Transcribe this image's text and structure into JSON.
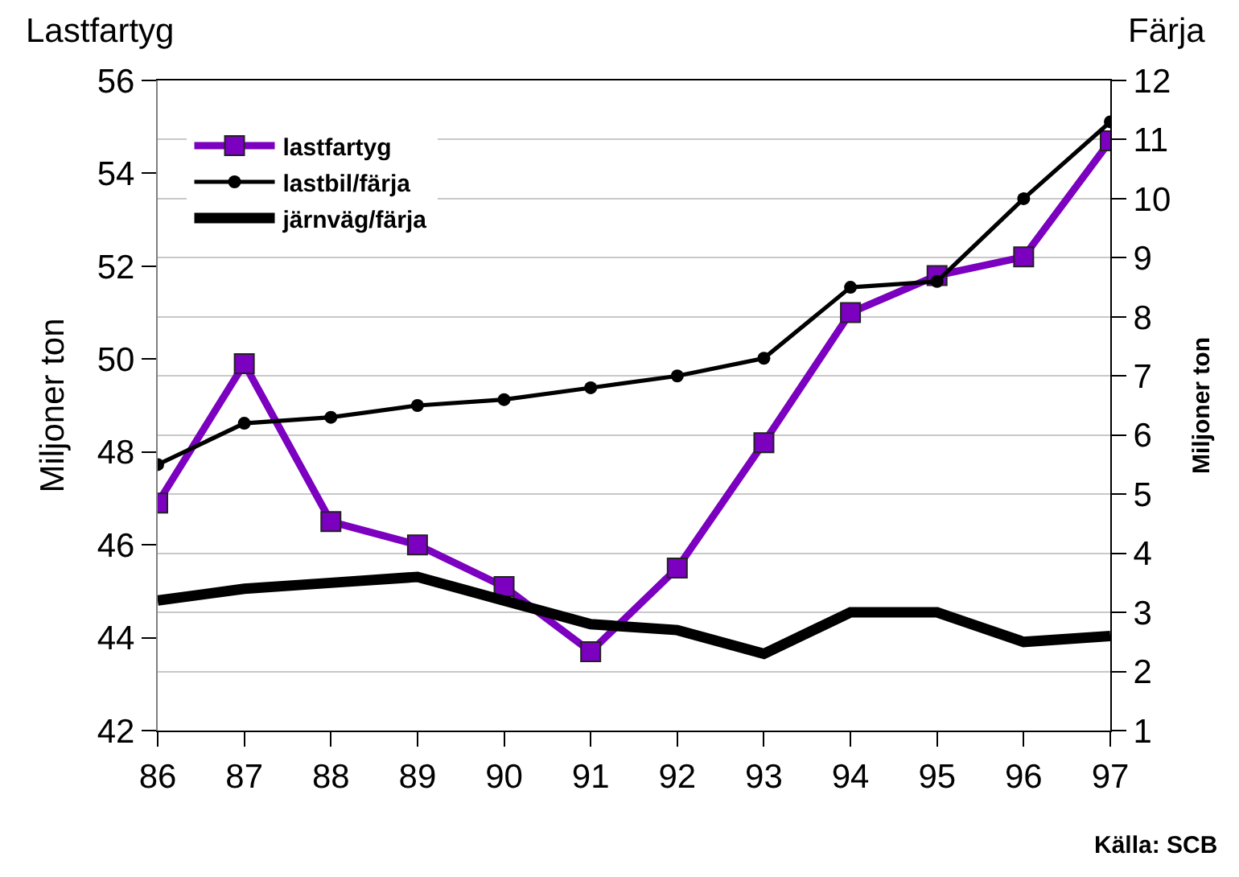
{
  "chart_data": {
    "type": "line",
    "x": [
      86,
      87,
      88,
      89,
      90,
      91,
      92,
      93,
      94,
      95,
      96,
      97
    ],
    "xlim": [
      86,
      97
    ],
    "xticks": [
      86,
      87,
      88,
      89,
      90,
      91,
      92,
      93,
      94,
      95,
      96,
      97
    ],
    "ylim": [
      42,
      56
    ],
    "yticks": [
      42,
      44,
      46,
      48,
      50,
      52,
      54,
      56
    ],
    "y2lim": [
      1,
      12
    ],
    "y2ticks": [
      1,
      2,
      3,
      4,
      5,
      6,
      7,
      8,
      9,
      10,
      11,
      12
    ],
    "ylabel": "Miljoner ton",
    "y2label": "Miljoner ton",
    "annotations": [
      "Lastfartyg",
      "Färja",
      "Källa: SCB"
    ],
    "grid": "y2",
    "legend": "top left",
    "line_style": "solid",
    "series": [
      {
        "name": "lastfartyg",
        "color": "#7b00c0",
        "marker": "square",
        "values": [
          46.9,
          49.9,
          46.5,
          46.0,
          45.1,
          43.7,
          45.5,
          48.2,
          51.0,
          51.8,
          52.2,
          54.7
        ]
      },
      {
        "name": "lastbil/färja",
        "color": "#000000",
        "marker": "circle",
        "axis": "y2",
        "values": [
          5.5,
          6.2,
          6.3,
          6.5,
          6.6,
          6.8,
          7.0,
          7.3,
          8.5,
          8.6,
          10.0,
          11.3
        ]
      },
      {
        "name": "järnväg/färja",
        "color": "#000000",
        "marker": "none",
        "axis": "y2",
        "values": [
          3.2,
          3.4,
          3.5,
          3.6,
          3.2,
          2.8,
          2.7,
          2.3,
          3.0,
          3.0,
          2.5,
          2.6
        ]
      }
    ]
  }
}
